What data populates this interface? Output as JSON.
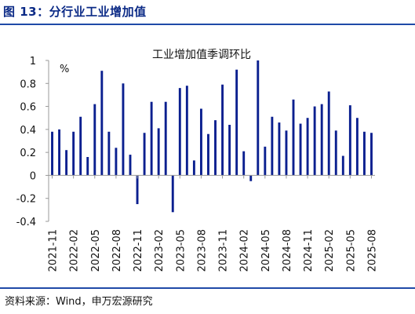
{
  "figure": {
    "title": "图 13：分行业工业增加值",
    "source": "资料来源：Wind，申万宏源研究"
  },
  "colors": {
    "bar": "#0a1f8f",
    "rule": "#1f4aa8",
    "title": "#0b2a86"
  },
  "chart_data": {
    "type": "bar",
    "title": "工业增加值季调环比",
    "ylabel": "%",
    "xlabel": "",
    "ylim": [
      -0.4,
      1
    ],
    "yticks": [
      -0.4,
      -0.2,
      0,
      0.2,
      0.4,
      0.6,
      0.8,
      1
    ],
    "ytick_labels": [
      "-0.4",
      "-0.2",
      "0",
      "0.2",
      "0.4",
      "0.6",
      "0.8",
      "1"
    ],
    "grid": false,
    "legend": "none",
    "categories": [
      "2021-11",
      "2021-12",
      "2022-01",
      "2022-02",
      "2022-03",
      "2022-04",
      "2022-05",
      "2022-06",
      "2022-07",
      "2022-08",
      "2022-09",
      "2022-10",
      "2022-11",
      "2022-12",
      "2023-01",
      "2023-02",
      "2023-03",
      "2023-04",
      "2023-05",
      "2023-06",
      "2023-07",
      "2023-08",
      "2023-09",
      "2023-10",
      "2023-11",
      "2023-12",
      "2024-01",
      "2024-02",
      "2024-03",
      "2024-04",
      "2024-05",
      "2024-06",
      "2024-07",
      "2024-08",
      "2024-09",
      "2024-10",
      "2024-11",
      "2024-12",
      "2025-01",
      "2025-02",
      "2025-03",
      "2025-04",
      "2025-05",
      "2025-06",
      "2025-07",
      "2025-08"
    ],
    "values": [
      0.38,
      0.4,
      0.22,
      0.38,
      0.51,
      0.16,
      0.62,
      0.91,
      0.38,
      0.24,
      0.8,
      0.18,
      -0.25,
      0.37,
      0.64,
      0.41,
      0.64,
      -0.32,
      0.76,
      0.78,
      0.13,
      0.58,
      0.36,
      0.48,
      0.79,
      0.44,
      0.92,
      0.21,
      -0.05,
      1.0,
      0.25,
      0.51,
      0.46,
      0.39,
      0.66,
      0.45,
      0.5,
      0.6,
      0.62,
      0.73,
      0.39,
      0.17,
      0.61,
      0.5,
      0.38,
      0.37
    ],
    "xtick_labels": [
      "2021-11",
      "2022-02",
      "2022-05",
      "2022-08",
      "2022-11",
      "2023-02",
      "2023-05",
      "2023-08",
      "2023-11",
      "2024-02",
      "2024-05",
      "2024-08",
      "2024-11",
      "2025-02",
      "2025-05",
      "2025-08"
    ],
    "xtick_every": 3
  }
}
